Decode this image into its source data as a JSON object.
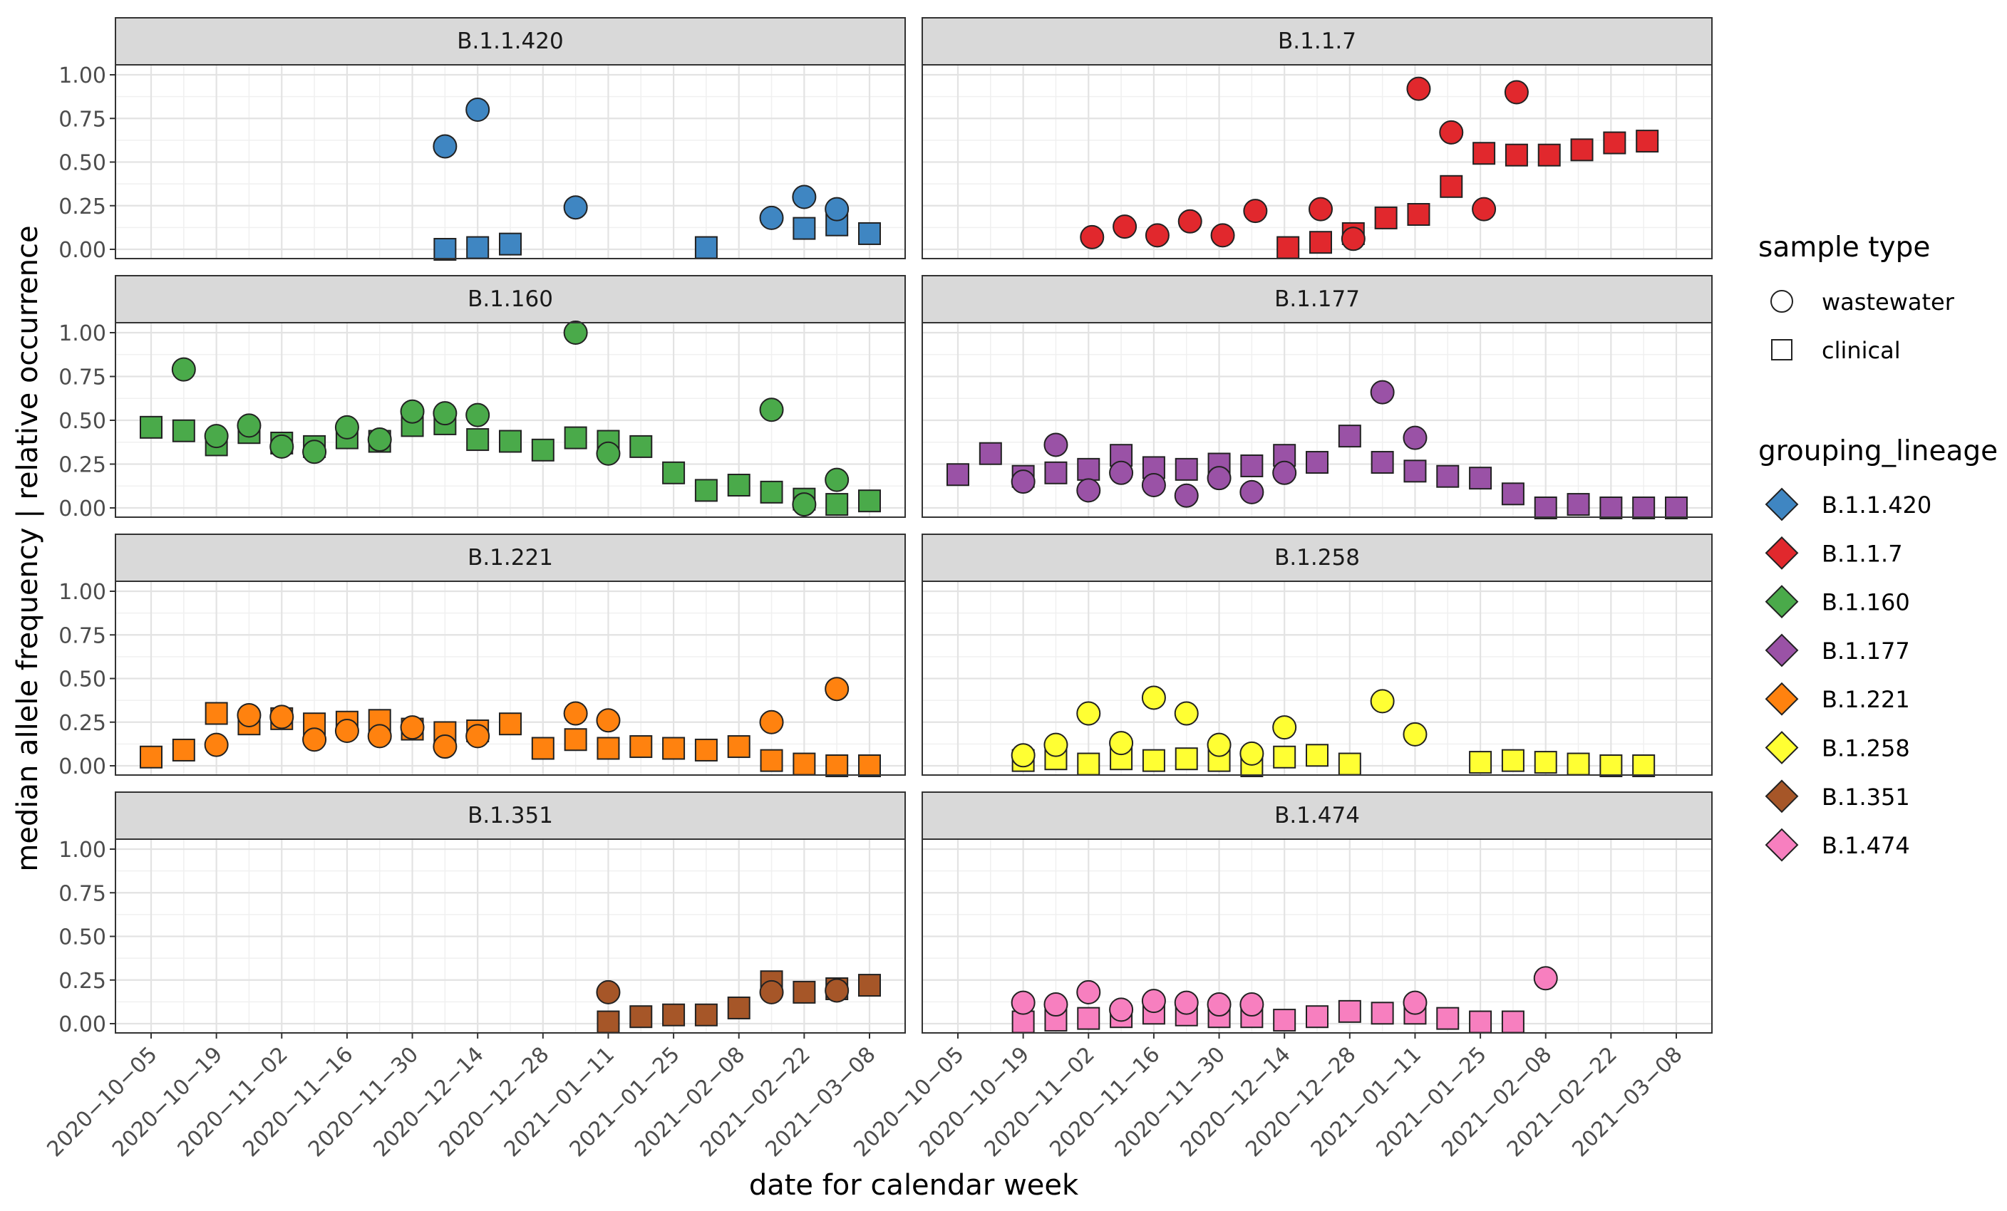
{
  "chart_data": {
    "type": "scatter",
    "ylabel": "median allele frequency | relative occurrence",
    "xlabel": "date for calendar week",
    "ylim": [
      0,
      1
    ],
    "y_ticks": [
      "0.00",
      "0.25",
      "0.50",
      "0.75",
      "1.00"
    ],
    "x_ticks": [
      "2020-10-05",
      "2020-10-19",
      "2020-11-02",
      "2020-11-16",
      "2020-11-30",
      "2020-12-14",
      "2020-12-28",
      "2021-01-11",
      "2021-01-25",
      "2021-02-08",
      "2021-02-22",
      "2021-03-08"
    ],
    "x_tick_display": [
      "2020−10−05",
      "2020−10−19",
      "2020−11−02",
      "2020−11−16",
      "2020−11−30",
      "2020−12−14",
      "2020−12−28",
      "2021−01−11",
      "2021−01−25",
      "2021−02−08",
      "2021−02−22",
      "2021−03−08"
    ],
    "weeks": [
      "2020-10-05",
      "2020-10-12",
      "2020-10-19",
      "2020-10-26",
      "2020-11-02",
      "2020-11-09",
      "2020-11-16",
      "2020-11-23",
      "2020-11-30",
      "2020-12-07",
      "2020-12-14",
      "2020-12-21",
      "2020-12-28",
      "2021-01-04",
      "2021-01-11",
      "2021-01-18",
      "2021-01-25",
      "2021-02-01",
      "2021-02-08",
      "2021-02-15",
      "2021-02-22",
      "2021-03-01",
      "2021-03-08"
    ],
    "legend_shape": {
      "title": "sample type",
      "items": [
        {
          "label": "wastewater",
          "shape": "circle"
        },
        {
          "label": "clinical",
          "shape": "square"
        }
      ]
    },
    "legend_color": {
      "title": "grouping_lineage",
      "items": [
        {
          "label": "B.1.1.420",
          "color": "#3f86c2"
        },
        {
          "label": "B.1.1.7",
          "color": "#e1282d"
        },
        {
          "label": "B.1.160",
          "color": "#4aaa4a"
        },
        {
          "label": "B.1.177",
          "color": "#9a52a6"
        },
        {
          "label": "B.1.221",
          "color": "#ff820f"
        },
        {
          "label": "B.1.258",
          "color": "#ffff33"
        },
        {
          "label": "B.1.351",
          "color": "#a65628"
        },
        {
          "label": "B.1.474",
          "color": "#f77fbf"
        }
      ]
    },
    "panels": [
      {
        "title": "B.1.1.420",
        "color": "#3f86c2",
        "wastewater": [
          [
            "2020-12-07",
            0.59
          ],
          [
            "2020-12-14",
            0.8
          ],
          [
            "2021-01-04",
            0.24
          ],
          [
            "2021-02-15",
            0.18
          ],
          [
            "2021-02-22",
            0.3
          ],
          [
            "2021-03-01",
            0.23
          ]
        ],
        "clinical": [
          [
            "2020-12-07",
            0.0
          ],
          [
            "2020-12-14",
            0.01
          ],
          [
            "2020-12-21",
            0.03
          ],
          [
            "2021-02-01",
            0.01
          ],
          [
            "2021-02-22",
            0.12
          ],
          [
            "2021-03-01",
            0.14
          ],
          [
            "2021-03-08",
            0.09
          ]
        ]
      },
      {
        "title": "B.1.1.7",
        "color": "#e1282d",
        "wastewater": [
          [
            "2020-11-02",
            0.07
          ],
          [
            "2020-11-09",
            0.13
          ],
          [
            "2020-11-16",
            0.08
          ],
          [
            "2020-11-23",
            0.16
          ],
          [
            "2020-11-30",
            0.08
          ],
          [
            "2020-12-07",
            0.22
          ],
          [
            "2020-12-21",
            0.23
          ],
          [
            "2020-12-28",
            0.06
          ],
          [
            "2021-01-11",
            0.92
          ],
          [
            "2021-01-18",
            0.67
          ],
          [
            "2021-01-25",
            0.23
          ],
          [
            "2021-02-01",
            0.9
          ]
        ],
        "clinical": [
          [
            "2020-12-14",
            0.01
          ],
          [
            "2020-12-21",
            0.04
          ],
          [
            "2020-12-28",
            0.09
          ],
          [
            "2021-01-04",
            0.18
          ],
          [
            "2021-01-11",
            0.2
          ],
          [
            "2021-01-18",
            0.36
          ],
          [
            "2021-01-25",
            0.55
          ],
          [
            "2021-02-01",
            0.54
          ],
          [
            "2021-02-08",
            0.54
          ],
          [
            "2021-02-15",
            0.57
          ],
          [
            "2021-02-22",
            0.61
          ],
          [
            "2021-03-01",
            0.62
          ]
        ],
        "x_shift": 5
      },
      {
        "title": "B.1.160",
        "color": "#4aaa4a",
        "wastewater": [
          [
            "2020-10-12",
            0.79
          ],
          [
            "2020-10-19",
            0.41
          ],
          [
            "2020-10-26",
            0.47
          ],
          [
            "2020-11-02",
            0.35
          ],
          [
            "2020-11-09",
            0.32
          ],
          [
            "2020-11-16",
            0.46
          ],
          [
            "2020-11-23",
            0.39
          ],
          [
            "2020-11-30",
            0.55
          ],
          [
            "2020-12-07",
            0.54
          ],
          [
            "2020-12-14",
            0.53
          ],
          [
            "2021-01-04",
            1.0
          ],
          [
            "2021-01-11",
            0.31
          ],
          [
            "2021-02-15",
            0.56
          ],
          [
            "2021-02-22",
            0.02
          ],
          [
            "2021-03-01",
            0.16
          ]
        ],
        "clinical": [
          [
            "2020-10-05",
            0.46
          ],
          [
            "2020-10-12",
            0.44
          ],
          [
            "2020-10-19",
            0.36
          ],
          [
            "2020-10-26",
            0.43
          ],
          [
            "2020-11-02",
            0.37
          ],
          [
            "2020-11-09",
            0.35
          ],
          [
            "2020-11-16",
            0.4
          ],
          [
            "2020-11-23",
            0.38
          ],
          [
            "2020-11-30",
            0.47
          ],
          [
            "2020-12-07",
            0.48
          ],
          [
            "2020-12-14",
            0.39
          ],
          [
            "2020-12-21",
            0.38
          ],
          [
            "2020-12-28",
            0.33
          ],
          [
            "2021-01-04",
            0.4
          ],
          [
            "2021-01-11",
            0.38
          ],
          [
            "2021-01-18",
            0.35
          ],
          [
            "2021-01-25",
            0.2
          ],
          [
            "2021-02-01",
            0.1
          ],
          [
            "2021-02-08",
            0.13
          ],
          [
            "2021-02-15",
            0.09
          ],
          [
            "2021-02-22",
            0.05
          ],
          [
            "2021-03-01",
            0.02
          ],
          [
            "2021-03-08",
            0.04
          ]
        ]
      },
      {
        "title": "B.1.177",
        "color": "#9a52a6",
        "wastewater": [
          [
            "2020-10-19",
            0.15
          ],
          [
            "2020-10-26",
            0.36
          ],
          [
            "2020-11-02",
            0.1
          ],
          [
            "2020-11-09",
            0.2
          ],
          [
            "2020-11-16",
            0.13
          ],
          [
            "2020-11-23",
            0.07
          ],
          [
            "2020-11-30",
            0.17
          ],
          [
            "2020-12-07",
            0.09
          ],
          [
            "2020-12-14",
            0.2
          ],
          [
            "2021-01-04",
            0.66
          ],
          [
            "2021-01-11",
            0.4
          ]
        ],
        "clinical": [
          [
            "2020-10-05",
            0.19
          ],
          [
            "2020-10-12",
            0.31
          ],
          [
            "2020-10-19",
            0.18
          ],
          [
            "2020-10-26",
            0.2
          ],
          [
            "2020-11-02",
            0.22
          ],
          [
            "2020-11-09",
            0.3
          ],
          [
            "2020-11-16",
            0.23
          ],
          [
            "2020-11-23",
            0.22
          ],
          [
            "2020-11-30",
            0.25
          ],
          [
            "2020-12-07",
            0.24
          ],
          [
            "2020-12-14",
            0.3
          ],
          [
            "2020-12-21",
            0.26
          ],
          [
            "2020-12-28",
            0.41
          ],
          [
            "2021-01-04",
            0.26
          ],
          [
            "2021-01-11",
            0.21
          ],
          [
            "2021-01-18",
            0.18
          ],
          [
            "2021-01-25",
            0.17
          ],
          [
            "2021-02-01",
            0.08
          ],
          [
            "2021-02-08",
            0.0
          ],
          [
            "2021-02-15",
            0.02
          ],
          [
            "2021-02-22",
            0.0
          ],
          [
            "2021-03-01",
            0.0
          ],
          [
            "2021-03-08",
            0.0
          ]
        ]
      },
      {
        "title": "B.1.221",
        "color": "#ff820f",
        "wastewater": [
          [
            "2020-10-19",
            0.12
          ],
          [
            "2020-10-26",
            0.29
          ],
          [
            "2020-11-02",
            0.28
          ],
          [
            "2020-11-09",
            0.15
          ],
          [
            "2020-11-16",
            0.2
          ],
          [
            "2020-11-23",
            0.17
          ],
          [
            "2020-11-30",
            0.22
          ],
          [
            "2020-12-07",
            0.11
          ],
          [
            "2020-12-14",
            0.17
          ],
          [
            "2021-01-04",
            0.3
          ],
          [
            "2021-01-11",
            0.26
          ],
          [
            "2021-02-15",
            0.25
          ],
          [
            "2021-03-01",
            0.44
          ]
        ],
        "clinical": [
          [
            "2020-10-05",
            0.05
          ],
          [
            "2020-10-12",
            0.09
          ],
          [
            "2020-10-19",
            0.3
          ],
          [
            "2020-10-26",
            0.24
          ],
          [
            "2020-11-02",
            0.27
          ],
          [
            "2020-11-09",
            0.24
          ],
          [
            "2020-11-16",
            0.25
          ],
          [
            "2020-11-23",
            0.26
          ],
          [
            "2020-11-30",
            0.21
          ],
          [
            "2020-12-07",
            0.19
          ],
          [
            "2020-12-14",
            0.2
          ],
          [
            "2020-12-21",
            0.24
          ],
          [
            "2020-12-28",
            0.1
          ],
          [
            "2021-01-04",
            0.15
          ],
          [
            "2021-01-11",
            0.1
          ],
          [
            "2021-01-18",
            0.11
          ],
          [
            "2021-01-25",
            0.1
          ],
          [
            "2021-02-01",
            0.09
          ],
          [
            "2021-02-08",
            0.11
          ],
          [
            "2021-02-15",
            0.03
          ],
          [
            "2021-02-22",
            0.01
          ],
          [
            "2021-03-01",
            0.0
          ],
          [
            "2021-03-08",
            0.0
          ]
        ]
      },
      {
        "title": "B.1.258",
        "color": "#ffff33",
        "wastewater": [
          [
            "2020-10-19",
            0.06
          ],
          [
            "2020-10-26",
            0.12
          ],
          [
            "2020-11-02",
            0.3
          ],
          [
            "2020-11-09",
            0.13
          ],
          [
            "2020-11-16",
            0.39
          ],
          [
            "2020-11-23",
            0.3
          ],
          [
            "2020-11-30",
            0.12
          ],
          [
            "2020-12-07",
            0.07
          ],
          [
            "2020-12-14",
            0.22
          ],
          [
            "2021-01-04",
            0.37
          ],
          [
            "2021-01-11",
            0.18
          ]
        ],
        "clinical": [
          [
            "2020-10-19",
            0.03
          ],
          [
            "2020-10-26",
            0.04
          ],
          [
            "2020-11-02",
            0.01
          ],
          [
            "2020-11-09",
            0.04
          ],
          [
            "2020-11-16",
            0.03
          ],
          [
            "2020-11-23",
            0.04
          ],
          [
            "2020-11-30",
            0.03
          ],
          [
            "2020-12-07",
            0.0
          ],
          [
            "2020-12-14",
            0.05
          ],
          [
            "2020-12-21",
            0.06
          ],
          [
            "2020-12-28",
            0.01
          ],
          [
            "2021-01-25",
            0.02
          ],
          [
            "2021-02-01",
            0.03
          ],
          [
            "2021-02-08",
            0.02
          ],
          [
            "2021-02-15",
            0.01
          ],
          [
            "2021-02-22",
            0.0
          ],
          [
            "2021-03-01",
            0.0
          ]
        ]
      },
      {
        "title": "B.1.351",
        "color": "#a65628",
        "wastewater": [
          [
            "2021-01-11",
            0.18
          ],
          [
            "2021-02-15",
            0.18
          ],
          [
            "2021-03-01",
            0.19
          ]
        ],
        "clinical": [
          [
            "2021-01-11",
            0.01
          ],
          [
            "2021-01-18",
            0.04
          ],
          [
            "2021-01-25",
            0.05
          ],
          [
            "2021-02-01",
            0.05
          ],
          [
            "2021-02-08",
            0.09
          ],
          [
            "2021-02-15",
            0.24
          ],
          [
            "2021-02-22",
            0.18
          ],
          [
            "2021-03-01",
            0.2
          ],
          [
            "2021-03-08",
            0.22
          ]
        ]
      },
      {
        "title": "B.1.474",
        "color": "#f77fbf",
        "wastewater": [
          [
            "2020-10-19",
            0.12
          ],
          [
            "2020-10-26",
            0.11
          ],
          [
            "2020-11-02",
            0.18
          ],
          [
            "2020-11-09",
            0.08
          ],
          [
            "2020-11-16",
            0.13
          ],
          [
            "2020-11-23",
            0.12
          ],
          [
            "2020-11-30",
            0.11
          ],
          [
            "2020-12-07",
            0.11
          ],
          [
            "2021-01-11",
            0.12
          ],
          [
            "2021-02-08",
            0.26
          ]
        ],
        "clinical": [
          [
            "2020-10-19",
            0.01
          ],
          [
            "2020-10-26",
            0.02
          ],
          [
            "2020-11-02",
            0.03
          ],
          [
            "2020-11-09",
            0.04
          ],
          [
            "2020-11-16",
            0.06
          ],
          [
            "2020-11-23",
            0.05
          ],
          [
            "2020-11-30",
            0.04
          ],
          [
            "2020-12-07",
            0.04
          ],
          [
            "2020-12-14",
            0.02
          ],
          [
            "2020-12-21",
            0.04
          ],
          [
            "2020-12-28",
            0.07
          ],
          [
            "2021-01-04",
            0.06
          ],
          [
            "2021-01-11",
            0.06
          ],
          [
            "2021-01-18",
            0.03
          ],
          [
            "2021-01-25",
            0.01
          ],
          [
            "2021-02-01",
            0.01
          ]
        ]
      }
    ]
  }
}
